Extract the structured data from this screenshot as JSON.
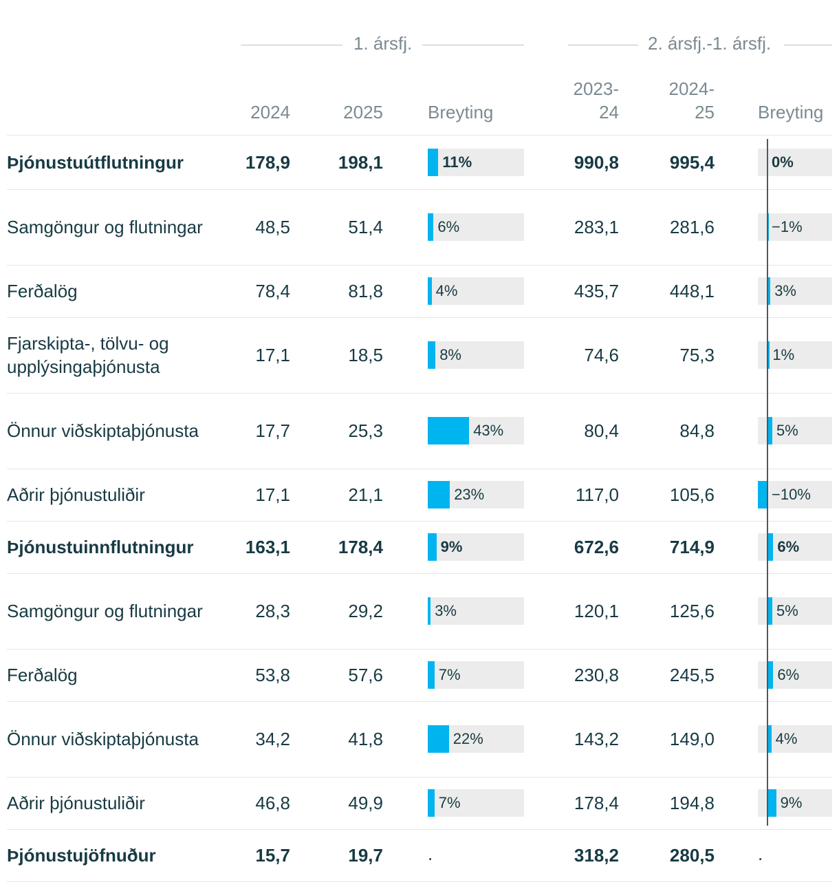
{
  "groups": {
    "q1": "1. ársfj.",
    "h": "2. ársfj.-1. ársfj."
  },
  "headers": {
    "y2024": "2024",
    "y2025": "2025",
    "change1": "Breyting",
    "p1": "2023-\n24",
    "p2": "2024-\n25",
    "change2": "Breyting"
  },
  "rows": [
    {
      "label": "Þjónustuútflutningur",
      "bold": true,
      "v2024": "178,9",
      "v2025": "198,1",
      "chg1": 11,
      "chg1_label": "11%",
      "p1": "990,8",
      "p2": "995,4",
      "chg2": 0,
      "chg2_label": "0%"
    },
    {
      "label": "Samgöngur og flutningar",
      "bold": false,
      "v2024": "48,5",
      "v2025": "51,4",
      "chg1": 6,
      "chg1_label": "6%",
      "p1": "283,1",
      "p2": "281,6",
      "chg2": -1,
      "chg2_label": "−1%"
    },
    {
      "label": "Ferðalög",
      "bold": false,
      "v2024": "78,4",
      "v2025": "81,8",
      "chg1": 4,
      "chg1_label": "4%",
      "p1": "435,7",
      "p2": "448,1",
      "chg2": 3,
      "chg2_label": "3%"
    },
    {
      "label": "Fjarskipta-, tölvu- og upplýsingaþjónusta",
      "bold": false,
      "v2024": "17,1",
      "v2025": "18,5",
      "chg1": 8,
      "chg1_label": "8%",
      "p1": "74,6",
      "p2": "75,3",
      "chg2": 1,
      "chg2_label": "1%"
    },
    {
      "label": "Önnur viðskiptaþjónusta",
      "bold": false,
      "v2024": "17,7",
      "v2025": "25,3",
      "chg1": 43,
      "chg1_label": "43%",
      "p1": "80,4",
      "p2": "84,8",
      "chg2": 5,
      "chg2_label": "5%"
    },
    {
      "label": "Aðrir þjónustuliðir",
      "bold": false,
      "v2024": "17,1",
      "v2025": "21,1",
      "chg1": 23,
      "chg1_label": "23%",
      "p1": "117,0",
      "p2": "105,6",
      "chg2": -10,
      "chg2_label": "−10%"
    },
    {
      "label": "Þjónustuinnflutningur",
      "bold": true,
      "v2024": "163,1",
      "v2025": "178,4",
      "chg1": 9,
      "chg1_label": "9%",
      "p1": "672,6",
      "p2": "714,9",
      "chg2": 6,
      "chg2_label": "6%"
    },
    {
      "label": "Samgöngur og flutningar",
      "bold": false,
      "v2024": "28,3",
      "v2025": "29,2",
      "chg1": 3,
      "chg1_label": "3%",
      "p1": "120,1",
      "p2": "125,6",
      "chg2": 5,
      "chg2_label": "5%"
    },
    {
      "label": "Ferðalög",
      "bold": false,
      "v2024": "53,8",
      "v2025": "57,6",
      "chg1": 7,
      "chg1_label": "7%",
      "p1": "230,8",
      "p2": "245,5",
      "chg2": 6,
      "chg2_label": "6%"
    },
    {
      "label": "Önnur viðskiptaþjónusta",
      "bold": false,
      "v2024": "34,2",
      "v2025": "41,8",
      "chg1": 22,
      "chg1_label": "22%",
      "p1": "143,2",
      "p2": "149,0",
      "chg2": 4,
      "chg2_label": "4%"
    },
    {
      "label": "Aðrir þjónustuliðir",
      "bold": false,
      "v2024": "46,8",
      "v2025": "49,9",
      "chg1": 7,
      "chg1_label": "7%",
      "p1": "178,4",
      "p2": "194,8",
      "chg2": 9,
      "chg2_label": "9%"
    },
    {
      "label": "Þjónustujöfnuður",
      "bold": true,
      "v2024": "15,7",
      "v2025": "19,7",
      "chg1": null,
      "chg1_label": ".",
      "p1": "318,2",
      "p2": "280,5",
      "chg2": null,
      "chg2_label": "."
    }
  ],
  "colors": {
    "bar": "#00b4ef",
    "bar_track": "#ececec",
    "text": "#183a43",
    "header": "#7b8a91"
  },
  "chart_data": {
    "type": "table",
    "columns": [
      "",
      "2024",
      "2025",
      "Breyting",
      "2023-24",
      "2024-25",
      "Breyting"
    ],
    "series": [
      {
        "name": "Breyting",
        "values": [
          11,
          6,
          4,
          8,
          43,
          23,
          9,
          3,
          7,
          22,
          7,
          null
        ]
      },
      {
        "name": "Breyting",
        "values": [
          0,
          -1,
          3,
          1,
          5,
          -10,
          6,
          5,
          6,
          4,
          9,
          null
        ]
      }
    ],
    "categories": [
      "Þjónustuútflutningur",
      "Samgöngur og flutningar",
      "Ferðalög",
      "Fjarskipta-, tölvu- og upplýsingaþjónusta",
      "Önnur viðskiptaþjónusta",
      "Aðrir þjónustuliðir",
      "Þjónustuinnflutningur",
      "Samgöngur og flutningar",
      "Ferðalög",
      "Önnur viðskiptaþjónusta",
      "Aðrir þjónustuliðir",
      "Þjónustujöfnuður"
    ]
  }
}
